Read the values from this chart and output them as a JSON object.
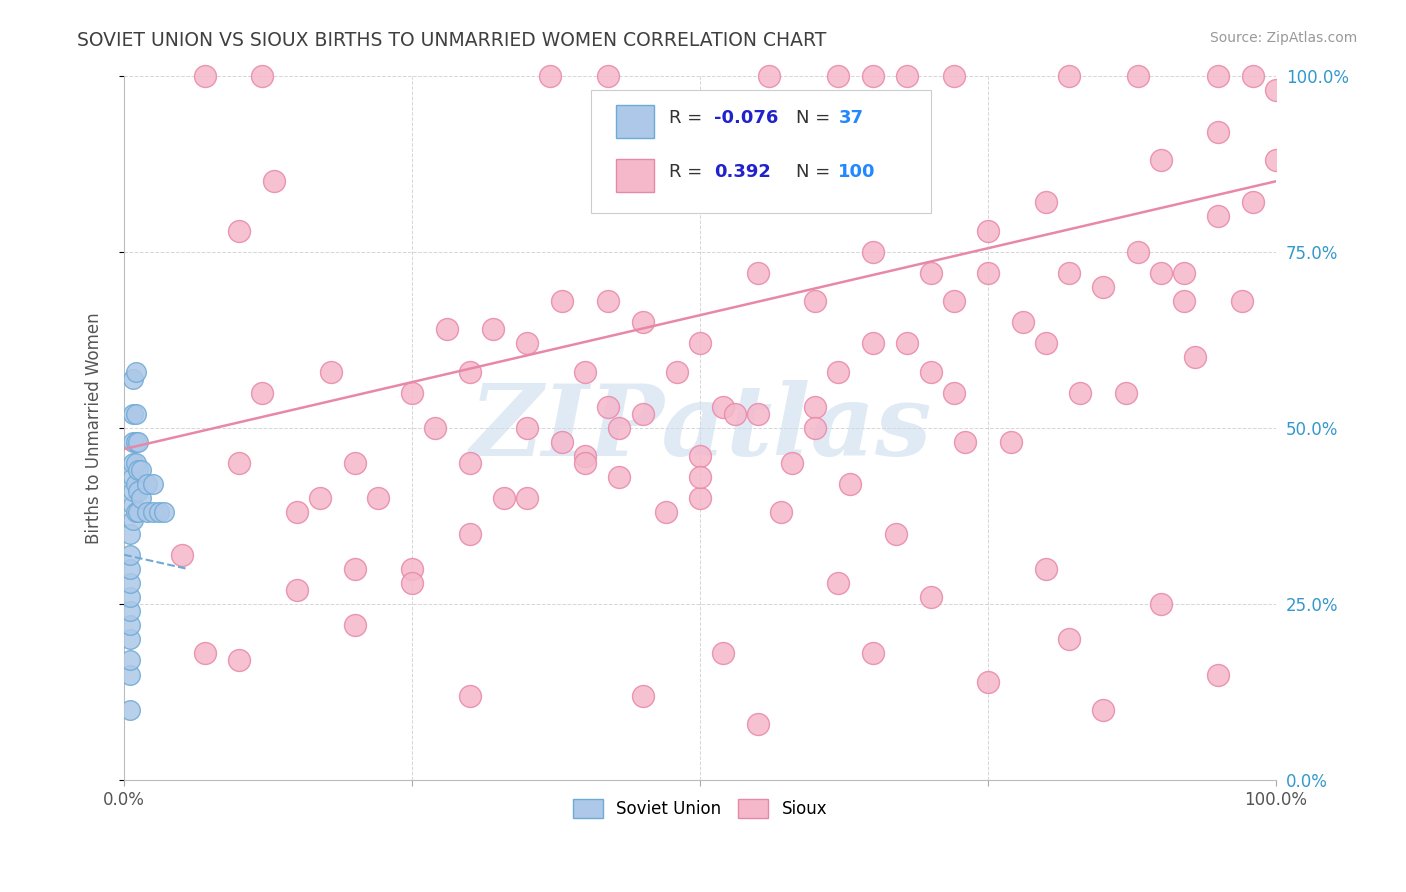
{
  "title": "SOVIET UNION VS SIOUX BIRTHS TO UNMARRIED WOMEN CORRELATION CHART",
  "source": "Source: ZipAtlas.com",
  "ylabel": "Births to Unmarried Women",
  "xlim": [
    0,
    1
  ],
  "ylim": [
    0,
    1
  ],
  "xticks": [
    0.0,
    0.25,
    0.5,
    0.75,
    1.0
  ],
  "yticks": [
    0.0,
    0.25,
    0.5,
    0.75,
    1.0
  ],
  "xticklabels": [
    "0.0%",
    "",
    "",
    "",
    "100.0%"
  ],
  "right_yticklabels": [
    "0.0%",
    "25.0%",
    "50.0%",
    "75.0%",
    "100.0%"
  ],
  "soviet_R": -0.076,
  "soviet_N": 37,
  "sioux_R": 0.392,
  "sioux_N": 100,
  "soviet_color": "#adc8e8",
  "sioux_color": "#f5b8cb",
  "soviet_edge": "#6eaad6",
  "sioux_edge": "#e888a8",
  "trend_sioux_color": "#e888a8",
  "trend_soviet_color": "#6eaad6",
  "background_color": "#ffffff",
  "grid_color": "#cccccc",
  "title_color": "#404040",
  "watermark": "ZIPatlas",
  "watermark_color": "#ccdded",
  "legend_R_color": "#2222cc",
  "legend_N_color": "#2288ff",
  "sioux_trend_x0": 0.0,
  "sioux_trend_y0": 0.47,
  "sioux_trend_x1": 1.0,
  "sioux_trend_y1": 0.85,
  "soviet_trend_x0": 0.0,
  "soviet_trend_y0": 0.32,
  "soviet_trend_x1": 0.055,
  "soviet_trend_y1": 0.3,
  "soviet_points_x": [
    0.005,
    0.005,
    0.005,
    0.005,
    0.005,
    0.005,
    0.005,
    0.005,
    0.005,
    0.005,
    0.005,
    0.008,
    0.008,
    0.008,
    0.008,
    0.008,
    0.008,
    0.008,
    0.008,
    0.01,
    0.01,
    0.01,
    0.01,
    0.01,
    0.01,
    0.012,
    0.012,
    0.012,
    0.012,
    0.015,
    0.015,
    0.02,
    0.02,
    0.025,
    0.025,
    0.03,
    0.035
  ],
  "soviet_points_y": [
    0.1,
    0.15,
    0.17,
    0.2,
    0.22,
    0.24,
    0.26,
    0.28,
    0.3,
    0.32,
    0.35,
    0.37,
    0.39,
    0.41,
    0.43,
    0.45,
    0.48,
    0.52,
    0.57,
    0.38,
    0.42,
    0.45,
    0.48,
    0.52,
    0.58,
    0.38,
    0.41,
    0.44,
    0.48,
    0.4,
    0.44,
    0.38,
    0.42,
    0.38,
    0.42,
    0.38,
    0.38
  ],
  "sioux_points_x": [
    0.05,
    0.07,
    0.1,
    0.1,
    0.12,
    0.13,
    0.15,
    0.17,
    0.18,
    0.2,
    0.2,
    0.22,
    0.25,
    0.25,
    0.27,
    0.28,
    0.3,
    0.3,
    0.32,
    0.33,
    0.35,
    0.35,
    0.38,
    0.38,
    0.4,
    0.4,
    0.42,
    0.42,
    0.43,
    0.45,
    0.45,
    0.47,
    0.48,
    0.5,
    0.5,
    0.52,
    0.53,
    0.55,
    0.55,
    0.57,
    0.58,
    0.6,
    0.6,
    0.62,
    0.63,
    0.65,
    0.65,
    0.67,
    0.68,
    0.7,
    0.7,
    0.72,
    0.73,
    0.75,
    0.75,
    0.77,
    0.78,
    0.8,
    0.8,
    0.82,
    0.83,
    0.85,
    0.87,
    0.88,
    0.9,
    0.9,
    0.92,
    0.93,
    0.95,
    0.95,
    0.97,
    0.98,
    1.0,
    1.0,
    0.1,
    0.15,
    0.2,
    0.25,
    0.3,
    0.4,
    0.43,
    0.5,
    0.52,
    0.6,
    0.62,
    0.7,
    0.72,
    0.8,
    0.82,
    0.9,
    0.92,
    0.95,
    0.3,
    0.35,
    0.45,
    0.5,
    0.55,
    0.65,
    0.75,
    0.85
  ],
  "sioux_points_y": [
    0.32,
    0.18,
    0.45,
    0.78,
    0.55,
    0.85,
    0.27,
    0.4,
    0.58,
    0.45,
    0.3,
    0.4,
    0.3,
    0.55,
    0.5,
    0.64,
    0.45,
    0.58,
    0.64,
    0.4,
    0.4,
    0.62,
    0.48,
    0.68,
    0.46,
    0.58,
    0.53,
    0.68,
    0.5,
    0.52,
    0.65,
    0.38,
    0.58,
    0.46,
    0.62,
    0.53,
    0.52,
    0.52,
    0.72,
    0.38,
    0.45,
    0.53,
    0.68,
    0.58,
    0.42,
    0.62,
    0.75,
    0.35,
    0.62,
    0.58,
    0.72,
    0.68,
    0.48,
    0.72,
    0.78,
    0.48,
    0.65,
    0.62,
    0.82,
    0.72,
    0.55,
    0.7,
    0.55,
    0.75,
    0.72,
    0.88,
    0.72,
    0.6,
    0.8,
    0.92,
    0.68,
    0.82,
    0.88,
    0.98,
    0.17,
    0.38,
    0.22,
    0.28,
    0.35,
    0.45,
    0.43,
    0.4,
    0.18,
    0.5,
    0.28,
    0.26,
    0.55,
    0.3,
    0.2,
    0.25,
    0.68,
    0.15,
    0.12,
    0.5,
    0.12,
    0.43,
    0.08,
    0.18,
    0.14,
    0.1
  ],
  "top_row_pink_x": [
    0.07,
    0.12,
    0.37,
    0.42,
    0.56,
    0.62,
    0.65,
    0.68,
    0.72,
    0.82,
    0.88,
    0.95,
    0.98
  ],
  "top_row_pink_y": [
    1.0,
    1.0,
    1.0,
    1.0,
    1.0,
    1.0,
    1.0,
    1.0,
    1.0,
    1.0,
    1.0,
    1.0,
    1.0
  ]
}
